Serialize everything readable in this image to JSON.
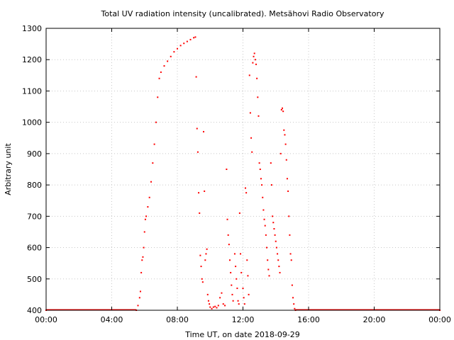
{
  "chart_data": {
    "type": "scatter",
    "title": "Total UV radiation intensity (uncalibrated). Metsähovi Radio Observatory",
    "xlabel": "Time UT, on date 2018-09-29",
    "ylabel": "Arbitrary unit",
    "xlim": [
      0,
      24
    ],
    "ylim": [
      400,
      1300
    ],
    "x_unit": "hours UT",
    "xticks": [
      0,
      4,
      8,
      12,
      16,
      20,
      24
    ],
    "xtick_labels": [
      "00:00",
      "04:00",
      "08:00",
      "12:00",
      "16:00",
      "20:00",
      "00:00"
    ],
    "yticks": [
      400,
      500,
      600,
      700,
      800,
      900,
      1000,
      1100,
      1200,
      1300
    ],
    "grid": true,
    "colors": {
      "series": "#ff0000",
      "axis": "#000000",
      "grid": "#c8c8c8"
    },
    "series": [
      {
        "points": [
          [
            0.0,
            400
          ],
          [
            5.5,
            400
          ],
          [
            5.6,
            415
          ],
          [
            5.7,
            440
          ],
          [
            5.75,
            460
          ],
          [
            5.8,
            520
          ],
          [
            5.85,
            560
          ],
          [
            5.9,
            570
          ],
          [
            5.95,
            600
          ],
          [
            6.0,
            650
          ],
          [
            6.05,
            690
          ],
          [
            6.1,
            700
          ],
          [
            6.2,
            730
          ],
          [
            6.3,
            760
          ],
          [
            6.4,
            810
          ],
          [
            6.5,
            870
          ],
          [
            6.6,
            930
          ],
          [
            6.7,
            1000
          ],
          [
            6.8,
            1080
          ],
          [
            6.9,
            1140
          ],
          [
            7.0,
            1160
          ],
          [
            7.2,
            1180
          ],
          [
            7.4,
            1195
          ],
          [
            7.6,
            1210
          ],
          [
            7.8,
            1225
          ],
          [
            8.0,
            1235
          ],
          [
            8.2,
            1245
          ],
          [
            8.4,
            1252
          ],
          [
            8.6,
            1258
          ],
          [
            8.8,
            1264
          ],
          [
            9.0,
            1270
          ],
          [
            9.1,
            1272
          ],
          [
            9.15,
            1145
          ],
          [
            9.2,
            980
          ],
          [
            9.25,
            905
          ],
          [
            9.3,
            775
          ],
          [
            9.35,
            710
          ],
          [
            9.4,
            575
          ],
          [
            9.45,
            540
          ],
          [
            9.5,
            500
          ],
          [
            9.55,
            490
          ],
          [
            9.6,
            970
          ],
          [
            9.65,
            780
          ],
          [
            9.7,
            560
          ],
          [
            9.75,
            580
          ],
          [
            9.8,
            595
          ],
          [
            9.85,
            450
          ],
          [
            9.9,
            430
          ],
          [
            9.95,
            420
          ],
          [
            10.0,
            410
          ],
          [
            10.1,
            405
          ],
          [
            10.2,
            410
          ],
          [
            10.3,
            412
          ],
          [
            10.4,
            408
          ],
          [
            10.5,
            415
          ],
          [
            10.6,
            440
          ],
          [
            10.7,
            455
          ],
          [
            10.8,
            420
          ],
          [
            10.9,
            415
          ],
          [
            11.0,
            850
          ],
          [
            11.05,
            690
          ],
          [
            11.1,
            640
          ],
          [
            11.15,
            610
          ],
          [
            11.2,
            560
          ],
          [
            11.25,
            520
          ],
          [
            11.3,
            480
          ],
          [
            11.35,
            450
          ],
          [
            11.4,
            430
          ],
          [
            11.5,
            580
          ],
          [
            11.55,
            540
          ],
          [
            11.6,
            500
          ],
          [
            11.65,
            470
          ],
          [
            11.7,
            430
          ],
          [
            11.75,
            420
          ],
          [
            11.8,
            710
          ],
          [
            11.85,
            580
          ],
          [
            11.9,
            520
          ],
          [
            12.0,
            470
          ],
          [
            12.05,
            440
          ],
          [
            12.1,
            420
          ],
          [
            12.15,
            790
          ],
          [
            12.2,
            775
          ],
          [
            12.25,
            560
          ],
          [
            12.3,
            510
          ],
          [
            12.35,
            450
          ],
          [
            12.4,
            1150
          ],
          [
            12.45,
            1030
          ],
          [
            12.5,
            950
          ],
          [
            12.55,
            905
          ],
          [
            12.6,
            1190
          ],
          [
            12.65,
            1210
          ],
          [
            12.7,
            1220
          ],
          [
            12.75,
            1200
          ],
          [
            12.8,
            1185
          ],
          [
            12.85,
            1140
          ],
          [
            12.9,
            1080
          ],
          [
            12.95,
            1020
          ],
          [
            13.0,
            870
          ],
          [
            13.05,
            850
          ],
          [
            13.1,
            820
          ],
          [
            13.15,
            800
          ],
          [
            13.2,
            760
          ],
          [
            13.25,
            720
          ],
          [
            13.3,
            690
          ],
          [
            13.35,
            670
          ],
          [
            13.4,
            640
          ],
          [
            13.45,
            600
          ],
          [
            13.5,
            560
          ],
          [
            13.55,
            530
          ],
          [
            13.6,
            510
          ],
          [
            13.7,
            870
          ],
          [
            13.75,
            800
          ],
          [
            13.8,
            700
          ],
          [
            13.85,
            680
          ],
          [
            13.9,
            660
          ],
          [
            13.95,
            640
          ],
          [
            14.0,
            620
          ],
          [
            14.05,
            600
          ],
          [
            14.1,
            580
          ],
          [
            14.15,
            560
          ],
          [
            14.2,
            540
          ],
          [
            14.25,
            520
          ],
          [
            14.3,
            900
          ],
          [
            14.35,
            1040
          ],
          [
            14.4,
            1045
          ],
          [
            14.45,
            1035
          ],
          [
            14.5,
            975
          ],
          [
            14.55,
            960
          ],
          [
            14.6,
            930
          ],
          [
            14.65,
            880
          ],
          [
            14.7,
            820
          ],
          [
            14.75,
            780
          ],
          [
            14.8,
            700
          ],
          [
            14.85,
            640
          ],
          [
            14.9,
            580
          ],
          [
            14.95,
            560
          ],
          [
            15.0,
            480
          ],
          [
            15.05,
            440
          ],
          [
            15.1,
            420
          ],
          [
            15.15,
            405
          ],
          [
            15.2,
            400
          ],
          [
            24.0,
            400
          ]
        ]
      }
    ]
  }
}
